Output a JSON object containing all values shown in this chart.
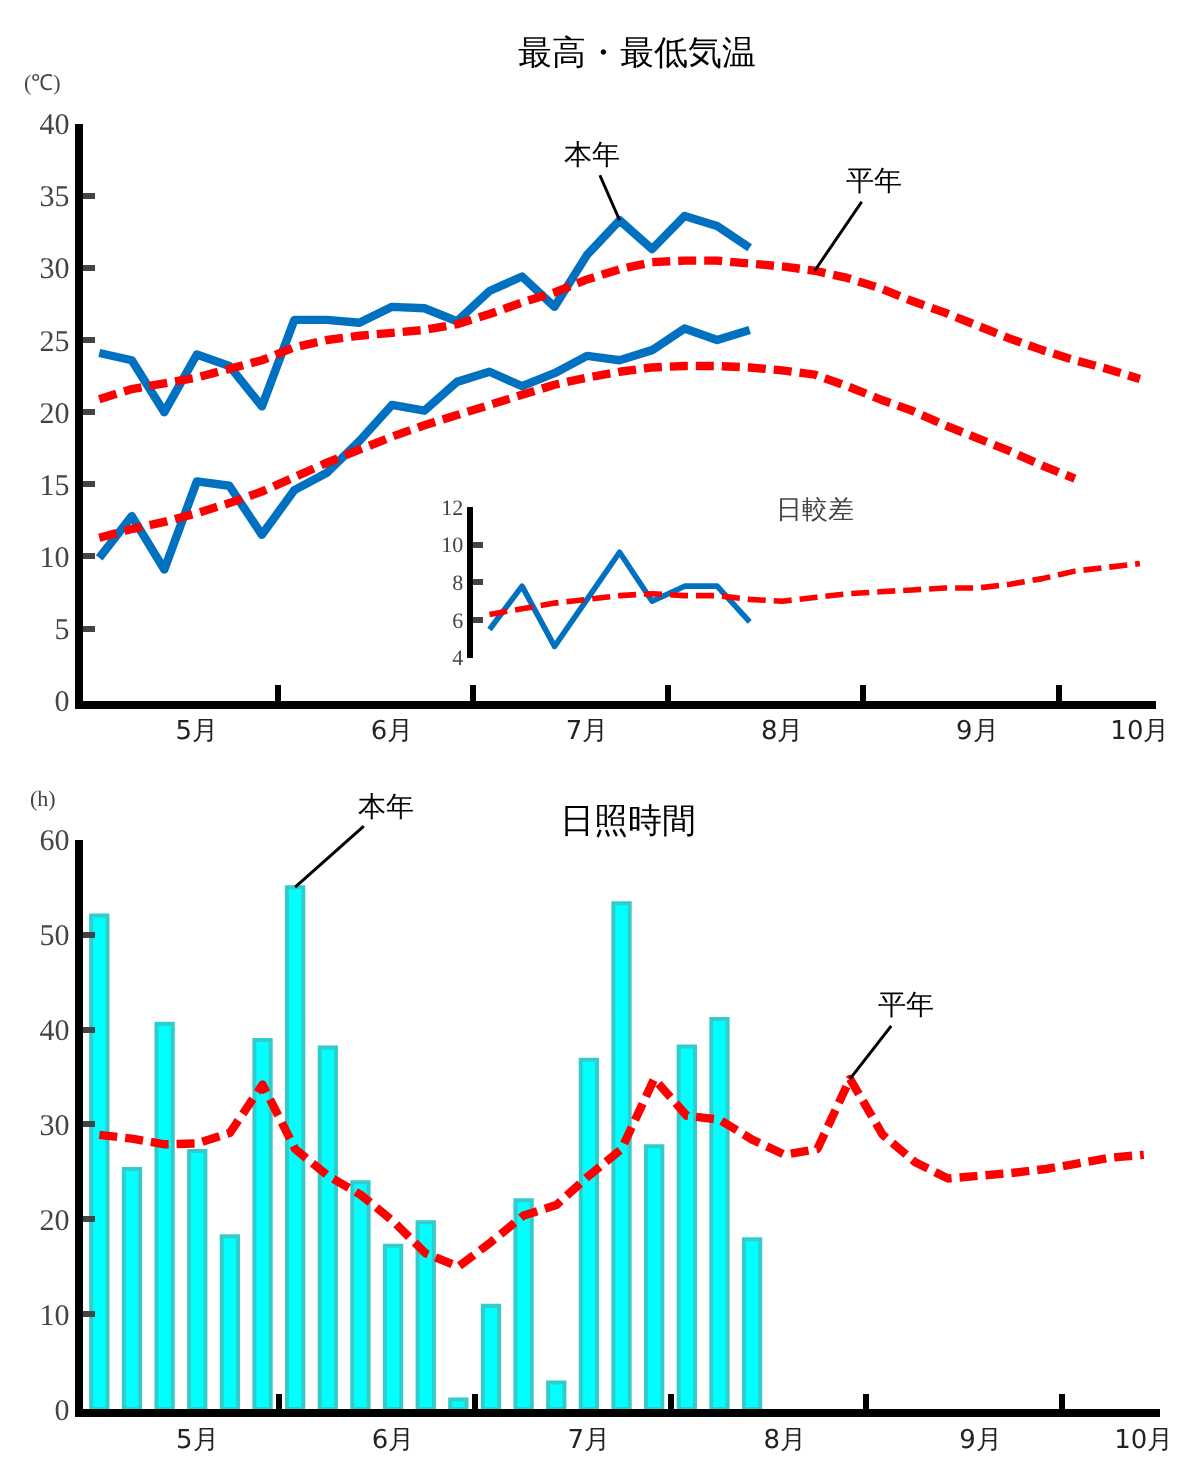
{
  "chart_data": [
    {
      "type": "line",
      "title": "最高・最低気温",
      "ylabel": "(℃)",
      "categories": [
        null,
        null,
        null,
        "5月",
        null,
        null,
        null,
        null,
        null,
        "6月",
        null,
        null,
        null,
        null,
        null,
        "7月",
        null,
        null,
        null,
        null,
        null,
        "8月",
        null,
        null,
        null,
        null,
        null,
        "9月",
        null,
        null,
        null,
        null,
        "10月"
      ],
      "ylim": [
        0,
        40
      ],
      "yticks": [
        0,
        5,
        10,
        15,
        20,
        25,
        30,
        35,
        40
      ],
      "series": [
        {
          "name": "本年",
          "color": "#0070c0",
          "line_style": "solid",
          "values": [
            24.1,
            23.6,
            20.0,
            24.0,
            23.2,
            20.4,
            26.4,
            26.4,
            26.2,
            27.3,
            27.2,
            26.3,
            28.4,
            29.4,
            27.3,
            30.9,
            33.3,
            31.3,
            33.6,
            32.9,
            31.4,
            null,
            null,
            null,
            null,
            null,
            null,
            null,
            null,
            null,
            null,
            null,
            null
          ]
        },
        {
          "color": "#0070c0",
          "line_style": "solid",
          "values": [
            9.9,
            12.8,
            9.1,
            15.2,
            14.9,
            11.5,
            14.6,
            15.8,
            18.0,
            20.5,
            20.1,
            22.1,
            22.8,
            21.8,
            22.7,
            23.9,
            23.6,
            24.3,
            25.8,
            25.0,
            25.7,
            null,
            null,
            null,
            null,
            null,
            null,
            null,
            null,
            null,
            null,
            null,
            null
          ]
        },
        {
          "name": "平年",
          "color": "#ff0000",
          "line_style": "dashed",
          "values": [
            20.9,
            21.6,
            22.0,
            22.4,
            23.0,
            23.6,
            24.5,
            25.0,
            25.3,
            25.5,
            25.7,
            26.1,
            26.8,
            27.6,
            28.3,
            29.2,
            29.9,
            30.4,
            30.5,
            30.5,
            30.3,
            30.1,
            29.8,
            29.3,
            28.6,
            27.7,
            26.9,
            26.0,
            25.1,
            24.3,
            23.6,
            23.0,
            22.3
          ]
        },
        {
          "color": "#ff0000",
          "line_style": "dashed",
          "values": [
            11.3,
            11.9,
            12.4,
            13.0,
            13.7,
            14.5,
            15.5,
            16.5,
            17.4,
            18.3,
            19.1,
            19.8,
            20.5,
            21.2,
            21.9,
            22.4,
            22.8,
            23.1,
            23.2,
            23.2,
            23.1,
            22.9,
            22.6,
            21.8,
            20.9,
            20.1,
            19.1,
            18.2,
            17.3,
            16.3,
            15.4,
            null,
            null
          ]
        }
      ],
      "legend": false
    },
    {
      "type": "line",
      "title": "日較差",
      "tick_labels": "y",
      "categories": [
        null,
        null,
        null,
        null,
        null,
        null,
        null,
        null,
        null,
        null,
        null,
        null,
        null,
        null,
        null,
        null,
        null,
        null,
        null,
        null,
        null
      ],
      "ylim": [
        4,
        12
      ],
      "yticks": [
        4,
        6,
        8,
        10,
        12
      ],
      "series": [
        {
          "color": "#0070c0",
          "line_style": "solid",
          "values": [
            5.5,
            7.8,
            4.6,
            7.1,
            9.6,
            7.0,
            7.8,
            7.8,
            5.9,
            null,
            null,
            null,
            null,
            null,
            null,
            null,
            null,
            null,
            null,
            null,
            null
          ]
        },
        {
          "color": "#ff0000",
          "line_style": "dashed",
          "values": [
            6.3,
            6.6,
            6.9,
            7.1,
            7.3,
            7.4,
            7.3,
            7.3,
            7.1,
            7.0,
            7.2,
            7.4,
            7.5,
            7.6,
            7.7,
            7.7,
            7.9,
            8.2,
            8.6,
            8.8,
            9.0
          ]
        }
      ]
    },
    {
      "type": "bar",
      "title": "日照時間",
      "ylabel": "(h)",
      "categories": [
        null,
        null,
        null,
        "5月",
        null,
        null,
        null,
        null,
        null,
        "6月",
        null,
        null,
        null,
        null,
        null,
        "7月",
        null,
        null,
        null,
        null,
        null,
        "8月",
        null,
        null,
        null,
        null,
        null,
        "9月",
        null,
        null,
        null,
        null,
        "10月"
      ],
      "ylim": [
        0,
        60
      ],
      "yticks": [
        0,
        10,
        20,
        30,
        40,
        50,
        60
      ],
      "series": [
        {
          "type": "bar",
          "name": "本年",
          "color": "#00ffff",
          "values": [
            52.0,
            25.3,
            40.6,
            27.2,
            18.2,
            38.9,
            55.0,
            38.1,
            23.9,
            17.2,
            19.7,
            1.0,
            10.9,
            22.0,
            2.8,
            36.8,
            53.3,
            27.7,
            38.2,
            41.1,
            17.9,
            null,
            null,
            null,
            null,
            null,
            null,
            null,
            null,
            null,
            null,
            null,
            null
          ]
        },
        {
          "type": "line",
          "name": "平年",
          "color": "#ff0000",
          "line_style": "dashed",
          "values": [
            28.9,
            28.5,
            27.9,
            28.0,
            29.1,
            34.2,
            27.4,
            24.6,
            22.6,
            19.8,
            16.4,
            15.0,
            17.6,
            20.4,
            21.5,
            24.6,
            27.4,
            34.8,
            30.9,
            30.5,
            28.4,
            26.8,
            27.4,
            34.8,
            28.9,
            26.0,
            24.3,
            24.6,
            24.9,
            25.3,
            25.9,
            26.5,
            26.8
          ]
        }
      ],
      "legend": false
    }
  ]
}
